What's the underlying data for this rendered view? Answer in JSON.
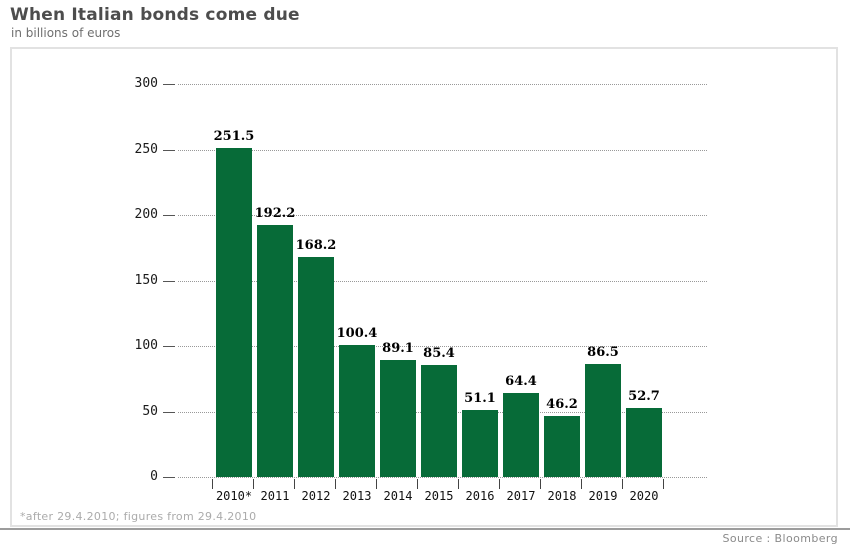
{
  "header": {
    "title": "When Italian bonds come due",
    "subtitle": "in billions of euros"
  },
  "footer": {
    "footnote": "*after 29.4.2010; figures from 29.4.2010",
    "source": "Source : Bloomberg"
  },
  "colors": {
    "bar": "#076b38",
    "gridline": "#999999",
    "title": "#4d4d4d"
  },
  "chart_data": {
    "type": "bar",
    "title": "When Italian bonds come due",
    "subtitle": "in billions of euros",
    "categories": [
      "2010*",
      "2011",
      "2012",
      "2013",
      "2014",
      "2015",
      "2016",
      "2017",
      "2018",
      "2019",
      "2020"
    ],
    "values": [
      251.5,
      192.2,
      168.2,
      100.4,
      89.1,
      85.4,
      51.1,
      64.4,
      46.2,
      86.5,
      52.7
    ],
    "value_labels": [
      "251.5",
      "192.2",
      "168.2",
      "100.4",
      "89.1",
      "85.4",
      "51.1",
      "64.4",
      "46.2",
      "86.5",
      "52.7"
    ],
    "xlabel": "",
    "ylabel": "",
    "ylim": [
      0,
      300
    ],
    "yticks": [
      0,
      50,
      100,
      150,
      200,
      250,
      300
    ],
    "grid": "horizontal-dotted",
    "legend": "none",
    "bar_color": "#076b38",
    "footnote": "*after 29.4.2010; figures from 29.4.2010",
    "source": "Source : Bloomberg"
  }
}
